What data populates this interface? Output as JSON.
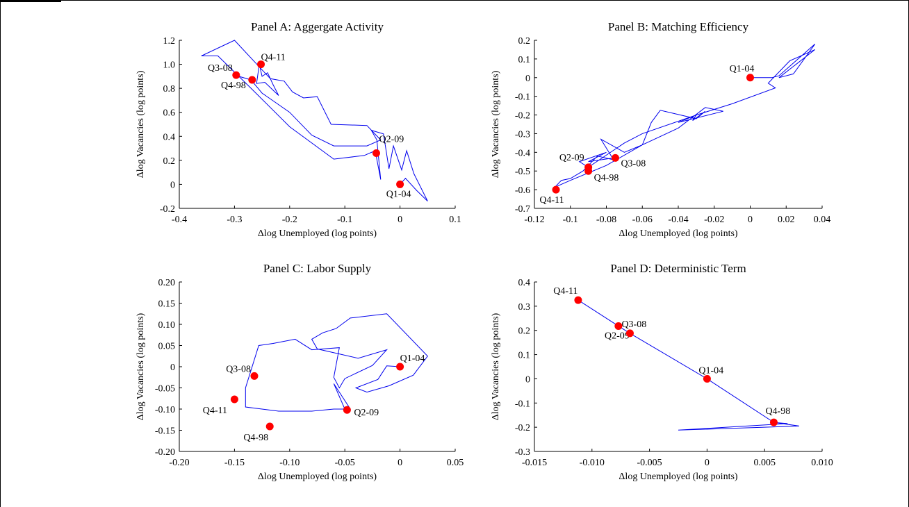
{
  "chart_data": [
    {
      "type": "line",
      "title": "Panel A: Aggergate Activity",
      "xlabel": "Δlog Unemployed (log points)",
      "ylabel": "Δlog Vacancies (log points)",
      "xlim": [
        -0.4,
        0.1
      ],
      "ylim": [
        -0.2,
        1.2
      ],
      "xticks": [
        -0.4,
        -0.3,
        -0.2,
        -0.1,
        0,
        0.1
      ],
      "xtick_labels": [
        "-0.4",
        "-0.3",
        "-0.2",
        "-0.1",
        "0",
        "0.1"
      ],
      "yticks": [
        -0.2,
        0,
        0.2,
        0.4,
        0.6,
        0.8,
        1.0,
        1.2
      ],
      "ytick_labels": [
        "-0.2",
        "0",
        "0.2",
        "0.4",
        "0.6",
        "0.8",
        "1.0",
        "1.2"
      ],
      "path": [
        [
          0,
          0
        ],
        [
          0.01,
          0.05
        ],
        [
          0.03,
          -0.05
        ],
        [
          0.05,
          -0.14
        ],
        [
          0.025,
          0.09
        ],
        [
          0.012,
          0.28
        ],
        [
          0.003,
          0.12
        ],
        [
          -0.012,
          0.32
        ],
        [
          -0.02,
          0.13
        ],
        [
          -0.03,
          0.42
        ],
        [
          -0.052,
          0.45
        ],
        [
          -0.042,
          0.37
        ],
        [
          -0.035,
          0.04
        ],
        [
          -0.045,
          0.28
        ],
        [
          -0.065,
          0.24
        ],
        [
          -0.12,
          0.21
        ],
        [
          -0.2,
          0.48
        ],
        [
          -0.27,
          0.8
        ],
        [
          -0.33,
          1.07
        ],
        [
          -0.36,
          1.07
        ],
        [
          -0.3,
          1.2
        ],
        [
          -0.235,
          0.88
        ],
        [
          -0.23,
          0.83
        ],
        [
          -0.22,
          0.74
        ],
        [
          -0.245,
          0.85
        ],
        [
          -0.26,
          0.84
        ],
        [
          -0.255,
          1.0
        ],
        [
          -0.25,
          0.9
        ],
        [
          -0.24,
          0.93
        ],
        [
          -0.235,
          0.88
        ],
        [
          -0.21,
          0.86
        ],
        [
          -0.195,
          0.77
        ],
        [
          -0.175,
          0.72
        ],
        [
          -0.15,
          0.73
        ],
        [
          -0.125,
          0.5
        ],
        [
          -0.06,
          0.49
        ],
        [
          -0.035,
          0.37
        ],
        [
          -0.06,
          0.32
        ],
        [
          -0.12,
          0.32
        ],
        [
          -0.16,
          0.41
        ],
        [
          -0.2,
          0.6
        ],
        [
          -0.25,
          0.76
        ],
        [
          -0.27,
          0.87
        ],
        [
          -0.3,
          0.91
        ]
      ],
      "labeled_points": [
        {
          "label": "Q4-11",
          "x": -0.252,
          "y": 1.0
        },
        {
          "label": "Q3-08",
          "x": -0.297,
          "y": 0.91
        },
        {
          "label": "Q4-98",
          "x": -0.268,
          "y": 0.87
        },
        {
          "label": "Q2-09",
          "x": -0.043,
          "y": 0.26
        },
        {
          "label": "Q1-04",
          "x": 0,
          "y": 0
        }
      ]
    },
    {
      "type": "line",
      "title": "Panel B: Matching Efficiency",
      "xlabel": "Δlog Unemployed (log points)",
      "ylabel": "Δlog Vacancies (log points)",
      "xlim": [
        -0.12,
        0.04
      ],
      "ylim": [
        -0.7,
        0.2
      ],
      "xticks": [
        -0.12,
        -0.1,
        -0.08,
        -0.06,
        -0.04,
        -0.02,
        0,
        0.02,
        0.04
      ],
      "xtick_labels": [
        "-0.12",
        "-0.1",
        "-0.08",
        "-0.06",
        "-0.04",
        "-0.02",
        "0",
        "0.02",
        "0.04"
      ],
      "yticks": [
        -0.7,
        -0.6,
        -0.5,
        -0.4,
        -0.3,
        -0.2,
        -0.1,
        0,
        0.1,
        0.2
      ],
      "ytick_labels": [
        "-0.7",
        "-0.6",
        "-0.5",
        "-0.4",
        "-0.3",
        "-0.2",
        "-0.1",
        "0",
        "0.1",
        "0.2"
      ],
      "path": [
        [
          0,
          0
        ],
        [
          0.012,
          0
        ],
        [
          0.016,
          0.01
        ],
        [
          0.036,
          0.18
        ],
        [
          0.024,
          0.02
        ],
        [
          0.016,
          0.0
        ],
        [
          0.036,
          0.15
        ],
        [
          0.022,
          0.09
        ],
        [
          0.01,
          -0.03
        ],
        [
          0.014,
          -0.055
        ],
        [
          -0.01,
          -0.14
        ],
        [
          -0.03,
          -0.2
        ],
        [
          -0.032,
          -0.23
        ],
        [
          -0.025,
          -0.18
        ],
        [
          -0.03,
          -0.22
        ],
        [
          -0.05,
          -0.175
        ],
        [
          -0.055,
          -0.24
        ],
        [
          -0.06,
          -0.36
        ],
        [
          -0.07,
          -0.4
        ],
        [
          -0.083,
          -0.33
        ],
        [
          -0.076,
          -0.44
        ],
        [
          -0.085,
          -0.42
        ],
        [
          -0.093,
          -0.5
        ],
        [
          -0.1,
          -0.54
        ],
        [
          -0.105,
          -0.55
        ],
        [
          -0.11,
          -0.6
        ],
        [
          -0.107,
          -0.58
        ],
        [
          -0.1,
          -0.55
        ],
        [
          -0.08,
          -0.47
        ],
        [
          -0.06,
          -0.36
        ],
        [
          -0.04,
          -0.27
        ],
        [
          -0.025,
          -0.16
        ],
        [
          -0.015,
          -0.18
        ],
        [
          -0.04,
          -0.24
        ],
        [
          -0.03,
          -0.2
        ],
        [
          -0.06,
          -0.3
        ],
        [
          -0.07,
          -0.35
        ],
        [
          -0.09,
          -0.48
        ],
        [
          -0.095,
          -0.45
        ],
        [
          -0.08,
          -0.4
        ],
        [
          -0.09,
          -0.45
        ],
        [
          -0.076,
          -0.43
        ]
      ],
      "labeled_points": [
        {
          "label": "Q1-04",
          "x": 0,
          "y": 0
        },
        {
          "label": "Q2-09",
          "x": -0.09,
          "y": -0.48
        },
        {
          "label": "Q4-98",
          "x": -0.09,
          "y": -0.5
        },
        {
          "label": "Q3-08",
          "x": -0.075,
          "y": -0.43
        },
        {
          "label": "Q4-11",
          "x": -0.108,
          "y": -0.6
        }
      ]
    },
    {
      "type": "line",
      "title": "Panel C: Labor Supply",
      "xlabel": "Δlog Unemployed (log points)",
      "ylabel": "Δlog Vacancies (log points)",
      "xlim": [
        -0.2,
        0.05
      ],
      "ylim": [
        -0.2,
        0.2
      ],
      "xticks": [
        -0.2,
        -0.15,
        -0.1,
        -0.05,
        0,
        0.05
      ],
      "xtick_labels": [
        "-0.20",
        "-0.15",
        "-0.10",
        "-0.05",
        "0",
        "0.05"
      ],
      "yticks": [
        -0.2,
        -0.15,
        -0.1,
        -0.05,
        0,
        0.05,
        0.1,
        0.15,
        0.2
      ],
      "ytick_labels": [
        "-0.20",
        "-0.15",
        "-0.10",
        "-0.05",
        "0",
        "0.05",
        "0.10",
        "0.15",
        "0.20"
      ],
      "path": [
        [
          0,
          0
        ],
        [
          -0.012,
          0.002
        ],
        [
          -0.02,
          -0.03
        ],
        [
          -0.04,
          -0.05
        ],
        [
          -0.03,
          -0.06
        ],
        [
          -0.01,
          -0.045
        ],
        [
          0.012,
          -0.02
        ],
        [
          0.025,
          0.025
        ],
        [
          -0.012,
          0.125
        ],
        [
          -0.045,
          0.115
        ],
        [
          -0.058,
          0.09
        ],
        [
          -0.07,
          0.08
        ],
        [
          -0.08,
          0.065
        ],
        [
          -0.075,
          0.042
        ],
        [
          -0.038,
          0.02
        ],
        [
          -0.012,
          0.04
        ],
        [
          -0.025,
          0.003
        ],
        [
          -0.05,
          -0.028
        ],
        [
          -0.055,
          -0.05
        ],
        [
          -0.06,
          -0.025
        ],
        [
          -0.055,
          0.045
        ],
        [
          -0.08,
          0.04
        ],
        [
          -0.095,
          0.065
        ],
        [
          -0.115,
          0.055
        ],
        [
          -0.128,
          0.05
        ],
        [
          -0.14,
          -0.05
        ],
        [
          -0.14,
          -0.095
        ],
        [
          -0.11,
          -0.105
        ],
        [
          -0.08,
          -0.105
        ],
        [
          -0.06,
          -0.1
        ],
        [
          -0.05,
          -0.1
        ],
        [
          -0.06,
          -0.04
        ],
        [
          -0.045,
          -0.1
        ],
        [
          -0.048,
          -0.102
        ]
      ],
      "labeled_points": [
        {
          "label": "Q1-04",
          "x": 0,
          "y": 0
        },
        {
          "label": "Q3-08",
          "x": -0.132,
          "y": -0.022
        },
        {
          "label": "Q4-11",
          "x": -0.15,
          "y": -0.077
        },
        {
          "label": "Q2-09",
          "x": -0.048,
          "y": -0.102
        },
        {
          "label": "Q4-98",
          "x": -0.118,
          "y": -0.141
        }
      ]
    },
    {
      "type": "line",
      "title": "Panel D: Deterministic Term",
      "xlabel": "Δlog Unemployed (log points)",
      "ylabel": "Δlog Vacancies (log points)",
      "xlim": [
        -0.015,
        0.01
      ],
      "ylim": [
        -0.3,
        0.4
      ],
      "xticks": [
        -0.015,
        -0.01,
        -0.005,
        0,
        0.005,
        0.01
      ],
      "xtick_labels": [
        "-0.015",
        "-0.010",
        "-0.005",
        "0",
        "0.005",
        "0.010"
      ],
      "yticks": [
        -0.3,
        -0.2,
        -0.1,
        0,
        0.1,
        0.2,
        0.3,
        0.4
      ],
      "ytick_labels": [
        "-0.3",
        "-0.2",
        "-0.1",
        "0",
        "0.1",
        "0.2",
        "0.3",
        "0.4"
      ],
      "path": [
        [
          -0.0112,
          0.325
        ],
        [
          -0.0077,
          0.218
        ],
        [
          -0.0067,
          0.188
        ],
        [
          0,
          0
        ],
        [
          0.0058,
          -0.18
        ],
        [
          0.008,
          -0.195
        ],
        [
          -0.0025,
          -0.212
        ],
        [
          0.007,
          -0.185
        ],
        [
          0.0058,
          -0.18
        ]
      ],
      "labeled_points": [
        {
          "label": "Q4-11",
          "x": -0.0112,
          "y": 0.325
        },
        {
          "label": "Q2-09",
          "x": -0.0077,
          "y": 0.218
        },
        {
          "label": "Q3-08",
          "x": -0.0067,
          "y": 0.188
        },
        {
          "label": "Q1-04",
          "x": 0,
          "y": 0
        },
        {
          "label": "Q4-98",
          "x": 0.0058,
          "y": -0.18
        }
      ]
    }
  ]
}
